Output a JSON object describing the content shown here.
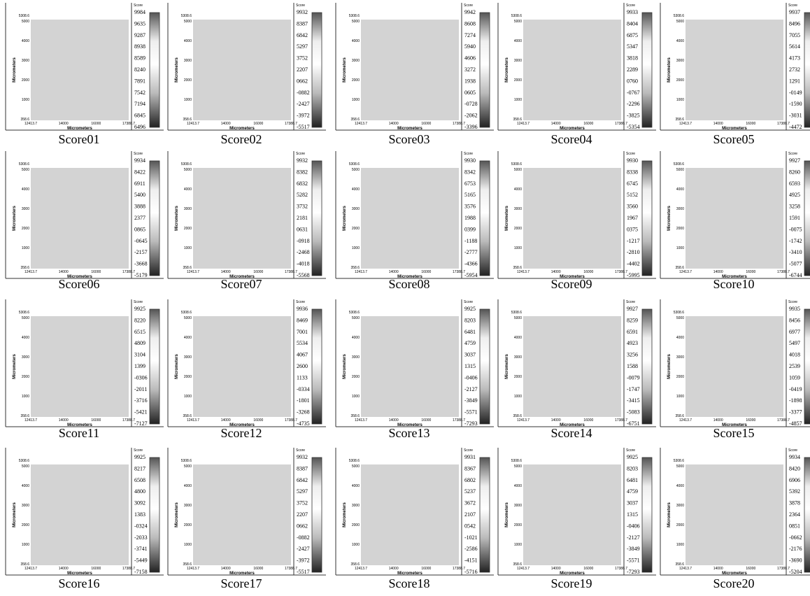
{
  "axes": {
    "x_label": "Micrometers",
    "y_label": "Micrometers",
    "x_ticks": [
      "12413.7",
      "14000",
      "16000",
      "17388.7"
    ],
    "y_ticks": [
      "5308.6",
      "5000",
      "4000",
      "3000",
      "2000",
      "1000",
      "358.6"
    ],
    "colorbar_title": "Score"
  },
  "panels": [
    {
      "caption": "Score01",
      "colorbar_labels": [
        "9984",
        "9635",
        "9287",
        "8938",
        "8589",
        "8240",
        "7891",
        "7542",
        "7194",
        "6845",
        "6496"
      ]
    },
    {
      "caption": "Score02",
      "colorbar_labels": [
        "9932",
        "8387",
        "6842",
        "5297",
        "3752",
        "2207",
        "0662",
        "-0882",
        "-2427",
        "-3972",
        "-5517"
      ]
    },
    {
      "caption": "Score03",
      "colorbar_labels": [
        "9942",
        "8608",
        "7274",
        "5940",
        "4606",
        "3272",
        "1938",
        "0605",
        "-0728",
        "-2062",
        "-3396"
      ]
    },
    {
      "caption": "Score04",
      "colorbar_labels": [
        "9933",
        "8404",
        "6875",
        "5347",
        "3818",
        "2289",
        "0760",
        "-0767",
        "-2296",
        "-3825",
        "-5354"
      ]
    },
    {
      "caption": "Score05",
      "colorbar_labels": [
        "9937",
        "8496",
        "7055",
        "5614",
        "4173",
        "2732",
        "1291",
        "-0149",
        "-1590",
        "-3031",
        "-4472"
      ]
    },
    {
      "caption": "Score06",
      "colorbar_labels": [
        "9934",
        "8422",
        "6911",
        "5400",
        "3888",
        "2377",
        "0865",
        "-0645",
        "-2157",
        "-3668",
        "-5179"
      ]
    },
    {
      "caption": "Score07",
      "colorbar_labels": [
        "9932",
        "8382",
        "6832",
        "5282",
        "3732",
        "2181",
        "0631",
        "-0918",
        "-2468",
        "-4018",
        "-5568"
      ]
    },
    {
      "caption": "Score08",
      "colorbar_labels": [
        "9930",
        "8342",
        "6753",
        "5165",
        "3576",
        "1988",
        "0399",
        "-1188",
        "-2777",
        "-4366",
        "-5954"
      ]
    },
    {
      "caption": "Score09",
      "colorbar_labels": [
        "9930",
        "8338",
        "6745",
        "5152",
        "3560",
        "1967",
        "0375",
        "-1217",
        "-2810",
        "-4402",
        "-5995"
      ]
    },
    {
      "caption": "Score10",
      "colorbar_labels": [
        "9927",
        "8260",
        "6593",
        "4925",
        "3258",
        "1591",
        "-0075",
        "-1742",
        "-3410",
        "-5077",
        "-6744"
      ]
    },
    {
      "caption": "Score11",
      "colorbar_labels": [
        "9925",
        "8220",
        "6515",
        "4809",
        "3104",
        "1399",
        "-0306",
        "-2011",
        "-3716",
        "-5421",
        "-7127"
      ]
    },
    {
      "caption": "Score12",
      "colorbar_labels": [
        "9936",
        "8469",
        "7001",
        "5534",
        "4067",
        "2600",
        "1133",
        "-0334",
        "-1801",
        "-3268",
        "-4735"
      ]
    },
    {
      "caption": "Score13",
      "colorbar_labels": [
        "9925",
        "8203",
        "6481",
        "4759",
        "3037",
        "1315",
        "-0406",
        "-2127",
        "-3849",
        "-5571",
        "-7293"
      ]
    },
    {
      "caption": "Score14",
      "colorbar_labels": [
        "9927",
        "8259",
        "6591",
        "4923",
        "3256",
        "1588",
        "-0079",
        "-1747",
        "-3415",
        "-5083",
        "-6751"
      ]
    },
    {
      "caption": "Score15",
      "colorbar_labels": [
        "9935",
        "8456",
        "6977",
        "5497",
        "4018",
        "2539",
        "1059",
        "-0419",
        "-1898",
        "-3377",
        "-4857"
      ]
    },
    {
      "caption": "Score16",
      "colorbar_labels": [
        "9925",
        "8217",
        "6508",
        "4800",
        "3092",
        "1383",
        "-0324",
        "-2033",
        "-3741",
        "-5449",
        "-7158"
      ]
    },
    {
      "caption": "Score17",
      "colorbar_labels": [
        "9932",
        "8387",
        "6842",
        "5297",
        "3752",
        "2207",
        "0662",
        "-0882",
        "-2427",
        "-3972",
        "-5517"
      ]
    },
    {
      "caption": "Score18",
      "colorbar_labels": [
        "9931",
        "8367",
        "6802",
        "5237",
        "3672",
        "2107",
        "0542",
        "-1021",
        "-2586",
        "-4151",
        "-5716"
      ]
    },
    {
      "caption": "Score19",
      "colorbar_labels": [
        "9925",
        "8203",
        "6481",
        "4759",
        "3037",
        "1315",
        "-0406",
        "-2127",
        "-3849",
        "-5571",
        "-7293"
      ]
    },
    {
      "caption": "Score20",
      "colorbar_labels": [
        "9934",
        "8420",
        "6906",
        "5392",
        "3878",
        "2364",
        "0851",
        "-0662",
        "-2176",
        "-3690",
        "-5204"
      ]
    }
  ]
}
